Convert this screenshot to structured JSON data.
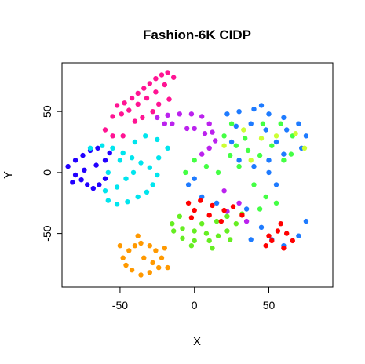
{
  "chart_data": {
    "type": "scatter",
    "title": "Fashion-6K CIDP",
    "xlabel": "X",
    "ylabel": "Y",
    "xlim": [
      -89,
      93
    ],
    "ylim": [
      -94,
      90
    ],
    "xticks": [
      -50,
      0,
      50
    ],
    "yticks": [
      -50,
      0,
      50
    ],
    "grid": false,
    "legend": "none",
    "series": [
      {
        "color": "#ff1493",
        "values": [
          [
            -52,
            55
          ],
          [
            -47,
            57
          ],
          [
            -42,
            61
          ],
          [
            -38,
            65
          ],
          [
            -34,
            69
          ],
          [
            -30,
            73
          ],
          [
            -26,
            77
          ],
          [
            -22,
            80
          ],
          [
            -18,
            82
          ],
          [
            -14,
            78
          ],
          [
            -20,
            72
          ],
          [
            -26,
            66
          ],
          [
            -32,
            61
          ],
          [
            -38,
            56
          ],
          [
            -44,
            51
          ],
          [
            -49,
            48
          ],
          [
            -55,
            46
          ],
          [
            -40,
            42
          ],
          [
            -35,
            45
          ],
          [
            -28,
            50
          ],
          [
            -24,
            56
          ],
          [
            -17,
            60
          ],
          [
            -60,
            35
          ],
          [
            -55,
            30
          ],
          [
            -48,
            30
          ]
        ]
      },
      {
        "color": "#bb22ee",
        "values": [
          [
            -25,
            45
          ],
          [
            -18,
            47
          ],
          [
            -10,
            48
          ],
          [
            -2,
            48
          ],
          [
            5,
            46
          ],
          [
            10,
            40
          ],
          [
            12,
            33
          ],
          [
            14,
            26
          ],
          [
            10,
            20
          ],
          [
            5,
            15
          ],
          [
            -5,
            36
          ],
          [
            -15,
            40
          ],
          [
            0,
            36
          ],
          [
            7,
            32
          ],
          [
            -20,
            40
          ],
          [
            20,
            -15
          ],
          [
            30,
            -25
          ],
          [
            22,
            -32
          ],
          [
            35,
            -40
          ]
        ]
      },
      {
        "color": "#2200ff",
        "values": [
          [
            -85,
            5
          ],
          [
            -80,
            10
          ],
          [
            -75,
            14
          ],
          [
            -70,
            18
          ],
          [
            -65,
            20
          ],
          [
            -80,
            -2
          ],
          [
            -76,
            -6
          ],
          [
            -72,
            -10
          ],
          [
            -68,
            -13
          ],
          [
            -64,
            -10
          ],
          [
            -60,
            -5
          ],
          [
            -74,
            2
          ],
          [
            -66,
            6
          ],
          [
            -60,
            10
          ],
          [
            -57,
            16
          ],
          [
            -82,
            -8
          ]
        ]
      },
      {
        "color": "#00e5ee",
        "values": [
          [
            -70,
            20
          ],
          [
            -62,
            22
          ],
          [
            -55,
            20
          ],
          [
            -48,
            16
          ],
          [
            -42,
            12
          ],
          [
            -36,
            8
          ],
          [
            -30,
            4
          ],
          [
            -25,
            -2
          ],
          [
            -28,
            -10
          ],
          [
            -32,
            -16
          ],
          [
            -38,
            -20
          ],
          [
            -45,
            -24
          ],
          [
            -52,
            -26
          ],
          [
            -58,
            -23
          ],
          [
            -60,
            -15
          ],
          [
            -58,
            0
          ],
          [
            -50,
            10
          ],
          [
            -40,
            25
          ],
          [
            -33,
            30
          ],
          [
            -25,
            27
          ],
          [
            -18,
            20
          ],
          [
            -46,
            -5
          ],
          [
            -52,
            -12
          ],
          [
            -41,
            0
          ],
          [
            -24,
            12
          ]
        ]
      },
      {
        "color": "#1e7bff",
        "values": [
          [
            22,
            48
          ],
          [
            30,
            50
          ],
          [
            40,
            52
          ],
          [
            50,
            48
          ],
          [
            60,
            45
          ],
          [
            70,
            40
          ],
          [
            75,
            30
          ],
          [
            72,
            20
          ],
          [
            60,
            15
          ],
          [
            55,
            25
          ],
          [
            48,
            35
          ],
          [
            38,
            40
          ],
          [
            28,
            38
          ],
          [
            25,
            25
          ],
          [
            30,
            10
          ],
          [
            40,
            5
          ],
          [
            50,
            0
          ],
          [
            55,
            -10
          ],
          [
            50,
            10
          ],
          [
            62,
            35
          ],
          [
            45,
            55
          ],
          [
            35,
            -30
          ],
          [
            45,
            -45
          ],
          [
            60,
            -60
          ],
          [
            70,
            -52
          ],
          [
            75,
            -40
          ],
          [
            52,
            -55
          ],
          [
            38,
            -55
          ],
          [
            15,
            -25
          ],
          [
            5,
            -20
          ],
          [
            -4,
            -10
          ],
          [
            0,
            -5
          ]
        ]
      },
      {
        "color": "#44ff44",
        "values": [
          [
            20,
            30
          ],
          [
            28,
            22
          ],
          [
            36,
            18
          ],
          [
            44,
            14
          ],
          [
            52,
            22
          ],
          [
            60,
            10
          ],
          [
            66,
            30
          ],
          [
            58,
            40
          ],
          [
            46,
            40
          ],
          [
            34,
            28
          ],
          [
            24,
            14
          ],
          [
            16,
            0
          ],
          [
            8,
            5
          ],
          [
            0,
            10
          ],
          [
            -6,
            0
          ],
          [
            40,
            -10
          ],
          [
            48,
            -20
          ],
          [
            44,
            -30
          ],
          [
            55,
            -25
          ],
          [
            30,
            5
          ],
          [
            65,
            15
          ],
          [
            25,
            40
          ]
        ]
      },
      {
        "color": "#ccff33",
        "values": [
          [
            33,
            35
          ],
          [
            45,
            28
          ],
          [
            55,
            30
          ],
          [
            68,
            32
          ],
          [
            74,
            20
          ],
          [
            20,
            22
          ],
          [
            38,
            10
          ]
        ]
      },
      {
        "color": "#66ee22",
        "values": [
          [
            -15,
            -42
          ],
          [
            -8,
            -46
          ],
          [
            0,
            -48
          ],
          [
            8,
            -50
          ],
          [
            16,
            -52
          ],
          [
            22,
            -48
          ],
          [
            28,
            -42
          ],
          [
            32,
            -34
          ],
          [
            10,
            -56
          ],
          [
            0,
            -56
          ],
          [
            -8,
            -54
          ],
          [
            -14,
            -48
          ],
          [
            5,
            -42
          ],
          [
            15,
            -40
          ],
          [
            22,
            -36
          ],
          [
            -10,
            -36
          ],
          [
            -2,
            -60
          ],
          [
            12,
            -62
          ],
          [
            24,
            -55
          ]
        ]
      },
      {
        "color": "#ff0000",
        "values": [
          [
            -4,
            -25
          ],
          [
            4,
            -23
          ],
          [
            12,
            -27
          ],
          [
            20,
            -31
          ],
          [
            26,
            -28
          ],
          [
            32,
            -35
          ],
          [
            10,
            -35
          ],
          [
            0,
            -31
          ],
          [
            -2,
            -37
          ],
          [
            18,
            -40
          ],
          [
            50,
            -52
          ],
          [
            56,
            -48
          ],
          [
            62,
            -50
          ],
          [
            58,
            -42
          ],
          [
            52,
            -56
          ],
          [
            66,
            -56
          ],
          [
            48,
            -60
          ],
          [
            60,
            -62
          ]
        ]
      },
      {
        "color": "#ff9900",
        "values": [
          [
            -48,
            -70
          ],
          [
            -44,
            -64
          ],
          [
            -40,
            -60
          ],
          [
            -36,
            -58
          ],
          [
            -30,
            -60
          ],
          [
            -26,
            -64
          ],
          [
            -22,
            -70
          ],
          [
            -24,
            -78
          ],
          [
            -30,
            -82
          ],
          [
            -36,
            -84
          ],
          [
            -42,
            -80
          ],
          [
            -46,
            -76
          ],
          [
            -34,
            -70
          ],
          [
            -28,
            -74
          ],
          [
            -20,
            -62
          ],
          [
            -50,
            -60
          ],
          [
            -38,
            -52
          ],
          [
            -18,
            -78
          ]
        ]
      }
    ]
  }
}
